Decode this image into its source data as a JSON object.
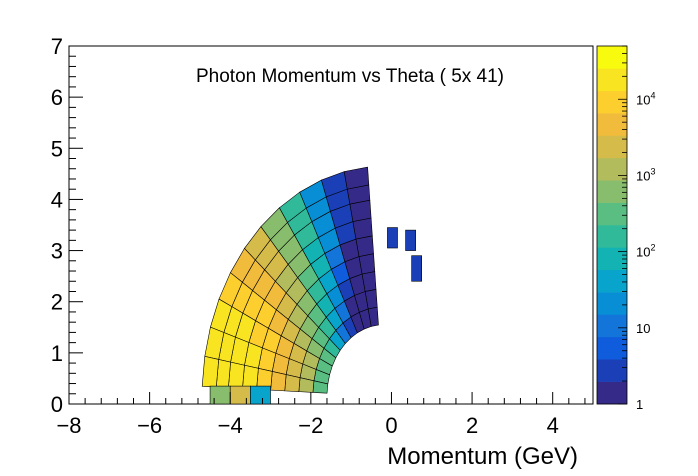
{
  "chart_data": {
    "type": "heatmap",
    "title": "Photon Momentum vs Theta ( 5x 41)",
    "xlabel": "Momentum (GeV)",
    "ylabel": "",
    "xlim": [
      -8,
      5
    ],
    "ylim": [
      0,
      7
    ],
    "x_ticks": [
      "−8",
      "−6",
      "−4",
      "−2",
      "0",
      "2",
      "4"
    ],
    "y_ticks": [
      "0",
      "1",
      "2",
      "3",
      "4",
      "5",
      "6",
      "7"
    ],
    "colorbar": {
      "scale": "log",
      "range": [
        1,
        50000
      ],
      "tick_labels": [
        "1",
        "10",
        "10^2",
        "10^3",
        "10^4"
      ],
      "palette": [
        "#352a87",
        "#1b3fb6",
        "#0f5cdd",
        "#1375da",
        "#078ed4",
        "#09a4cc",
        "#13b3b3",
        "#30ba9a",
        "#5abe82",
        "#87bd6c",
        "#b2bc5c",
        "#d5bb4a",
        "#f1bb3b",
        "#fcce2e",
        "#f8e420",
        "#f9fb0e"
      ],
      "colors_semantic": {
        "low": "#352a87",
        "mid": "#30ba9a",
        "high": "#f9fb0e"
      }
    },
    "cell_shape": "polar sectors of a circular region centred near (-0.2, 0.15); inner radius ~1.4 GeV, outer radius ~4.5 GeV",
    "peak_region": "around p ≈ -4.0 GeV, theta ≈ 0.7–1.3 rad (counts ~2×10^4)"
  }
}
